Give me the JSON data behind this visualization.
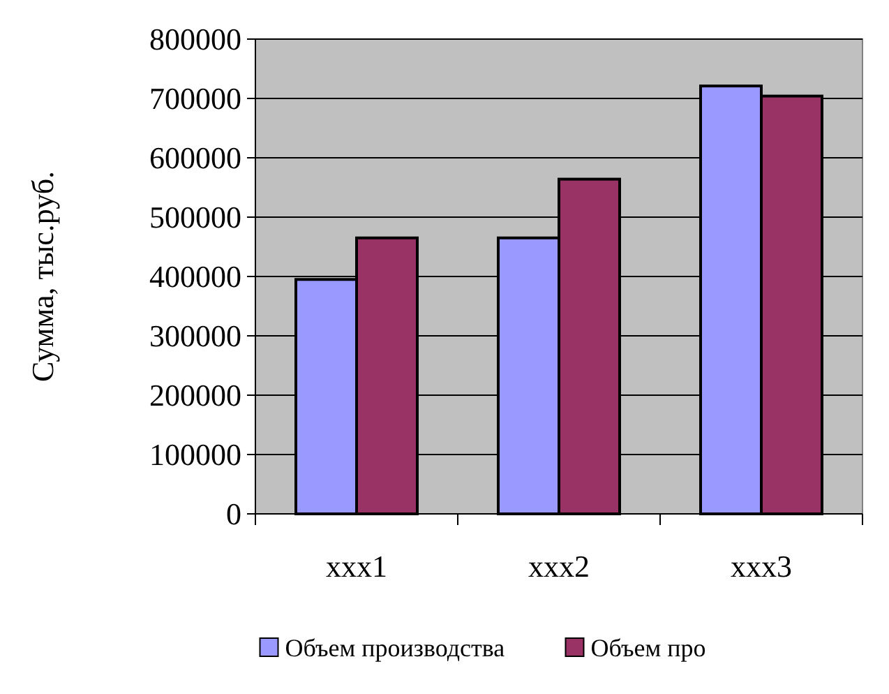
{
  "chart_data": {
    "type": "bar",
    "ylabel": "Сумма, тыс.руб.",
    "categories": [
      "xxx1",
      "xxx2",
      "xxx3"
    ],
    "series": [
      {
        "name": "Объем производства",
        "color": "#9999ff",
        "values": [
          395000,
          465000,
          721000
        ]
      },
      {
        "name": "Объем про",
        "color": "#993366",
        "values": [
          465000,
          564000,
          704000
        ]
      }
    ],
    "ylim": [
      0,
      800000
    ],
    "yticks": [
      0,
      100000,
      200000,
      300000,
      400000,
      500000,
      600000,
      700000,
      800000
    ],
    "grid": "y",
    "legend": "bottom"
  }
}
